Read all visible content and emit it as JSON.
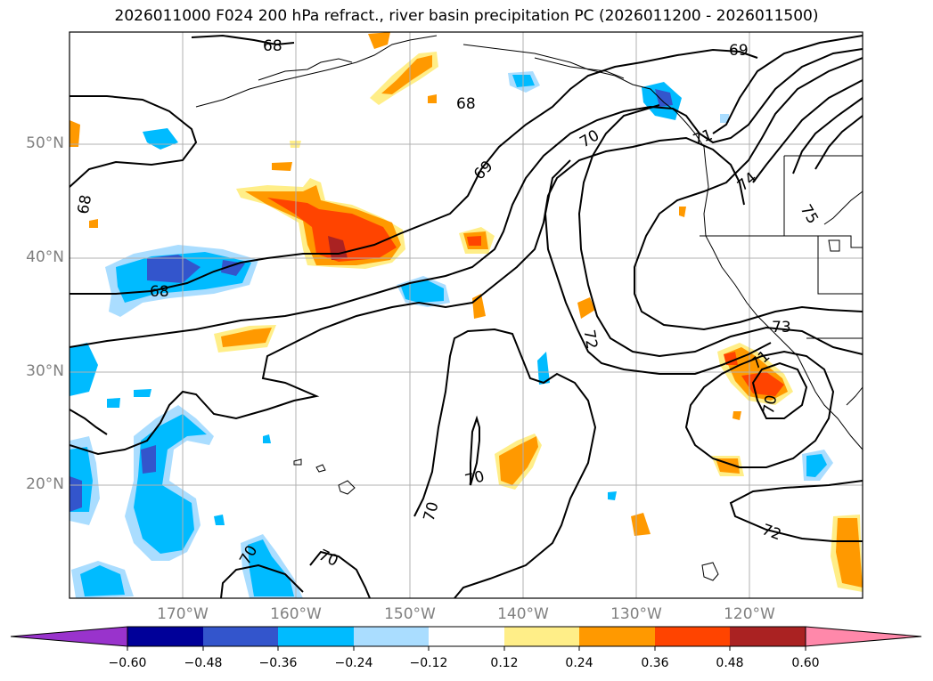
{
  "title": "2026011000 F024 200 hPa refract., river basin precipitation PC (2026011200 - 2026011500)",
  "map": {
    "lat_labels": [
      "50°N",
      "40°N",
      "30°N",
      "20°N"
    ],
    "lon_labels": [
      "170°W",
      "160°W",
      "150°W",
      "140°W",
      "130°W",
      "120°W"
    ],
    "contour_labels": [
      "68",
      "68",
      "68",
      "69",
      "69",
      "70",
      "71",
      "74",
      "75",
      "68",
      "72",
      "73",
      "71",
      "70",
      "70",
      "70",
      "70",
      "70",
      "72"
    ]
  },
  "colorbar": {
    "colors": [
      "#9933cc",
      "#000099",
      "#3355cc",
      "#00bbff",
      "#aaddff",
      "#ffffff",
      "#ffee88",
      "#ff9900",
      "#ff4400",
      "#aa2222",
      "#ff88aa"
    ],
    "tick_labels": [
      "−0.60",
      "−0.48",
      "−0.36",
      "−0.24",
      "−0.12",
      "0.12",
      "0.24",
      "0.36",
      "0.48",
      "0.60"
    ]
  }
}
